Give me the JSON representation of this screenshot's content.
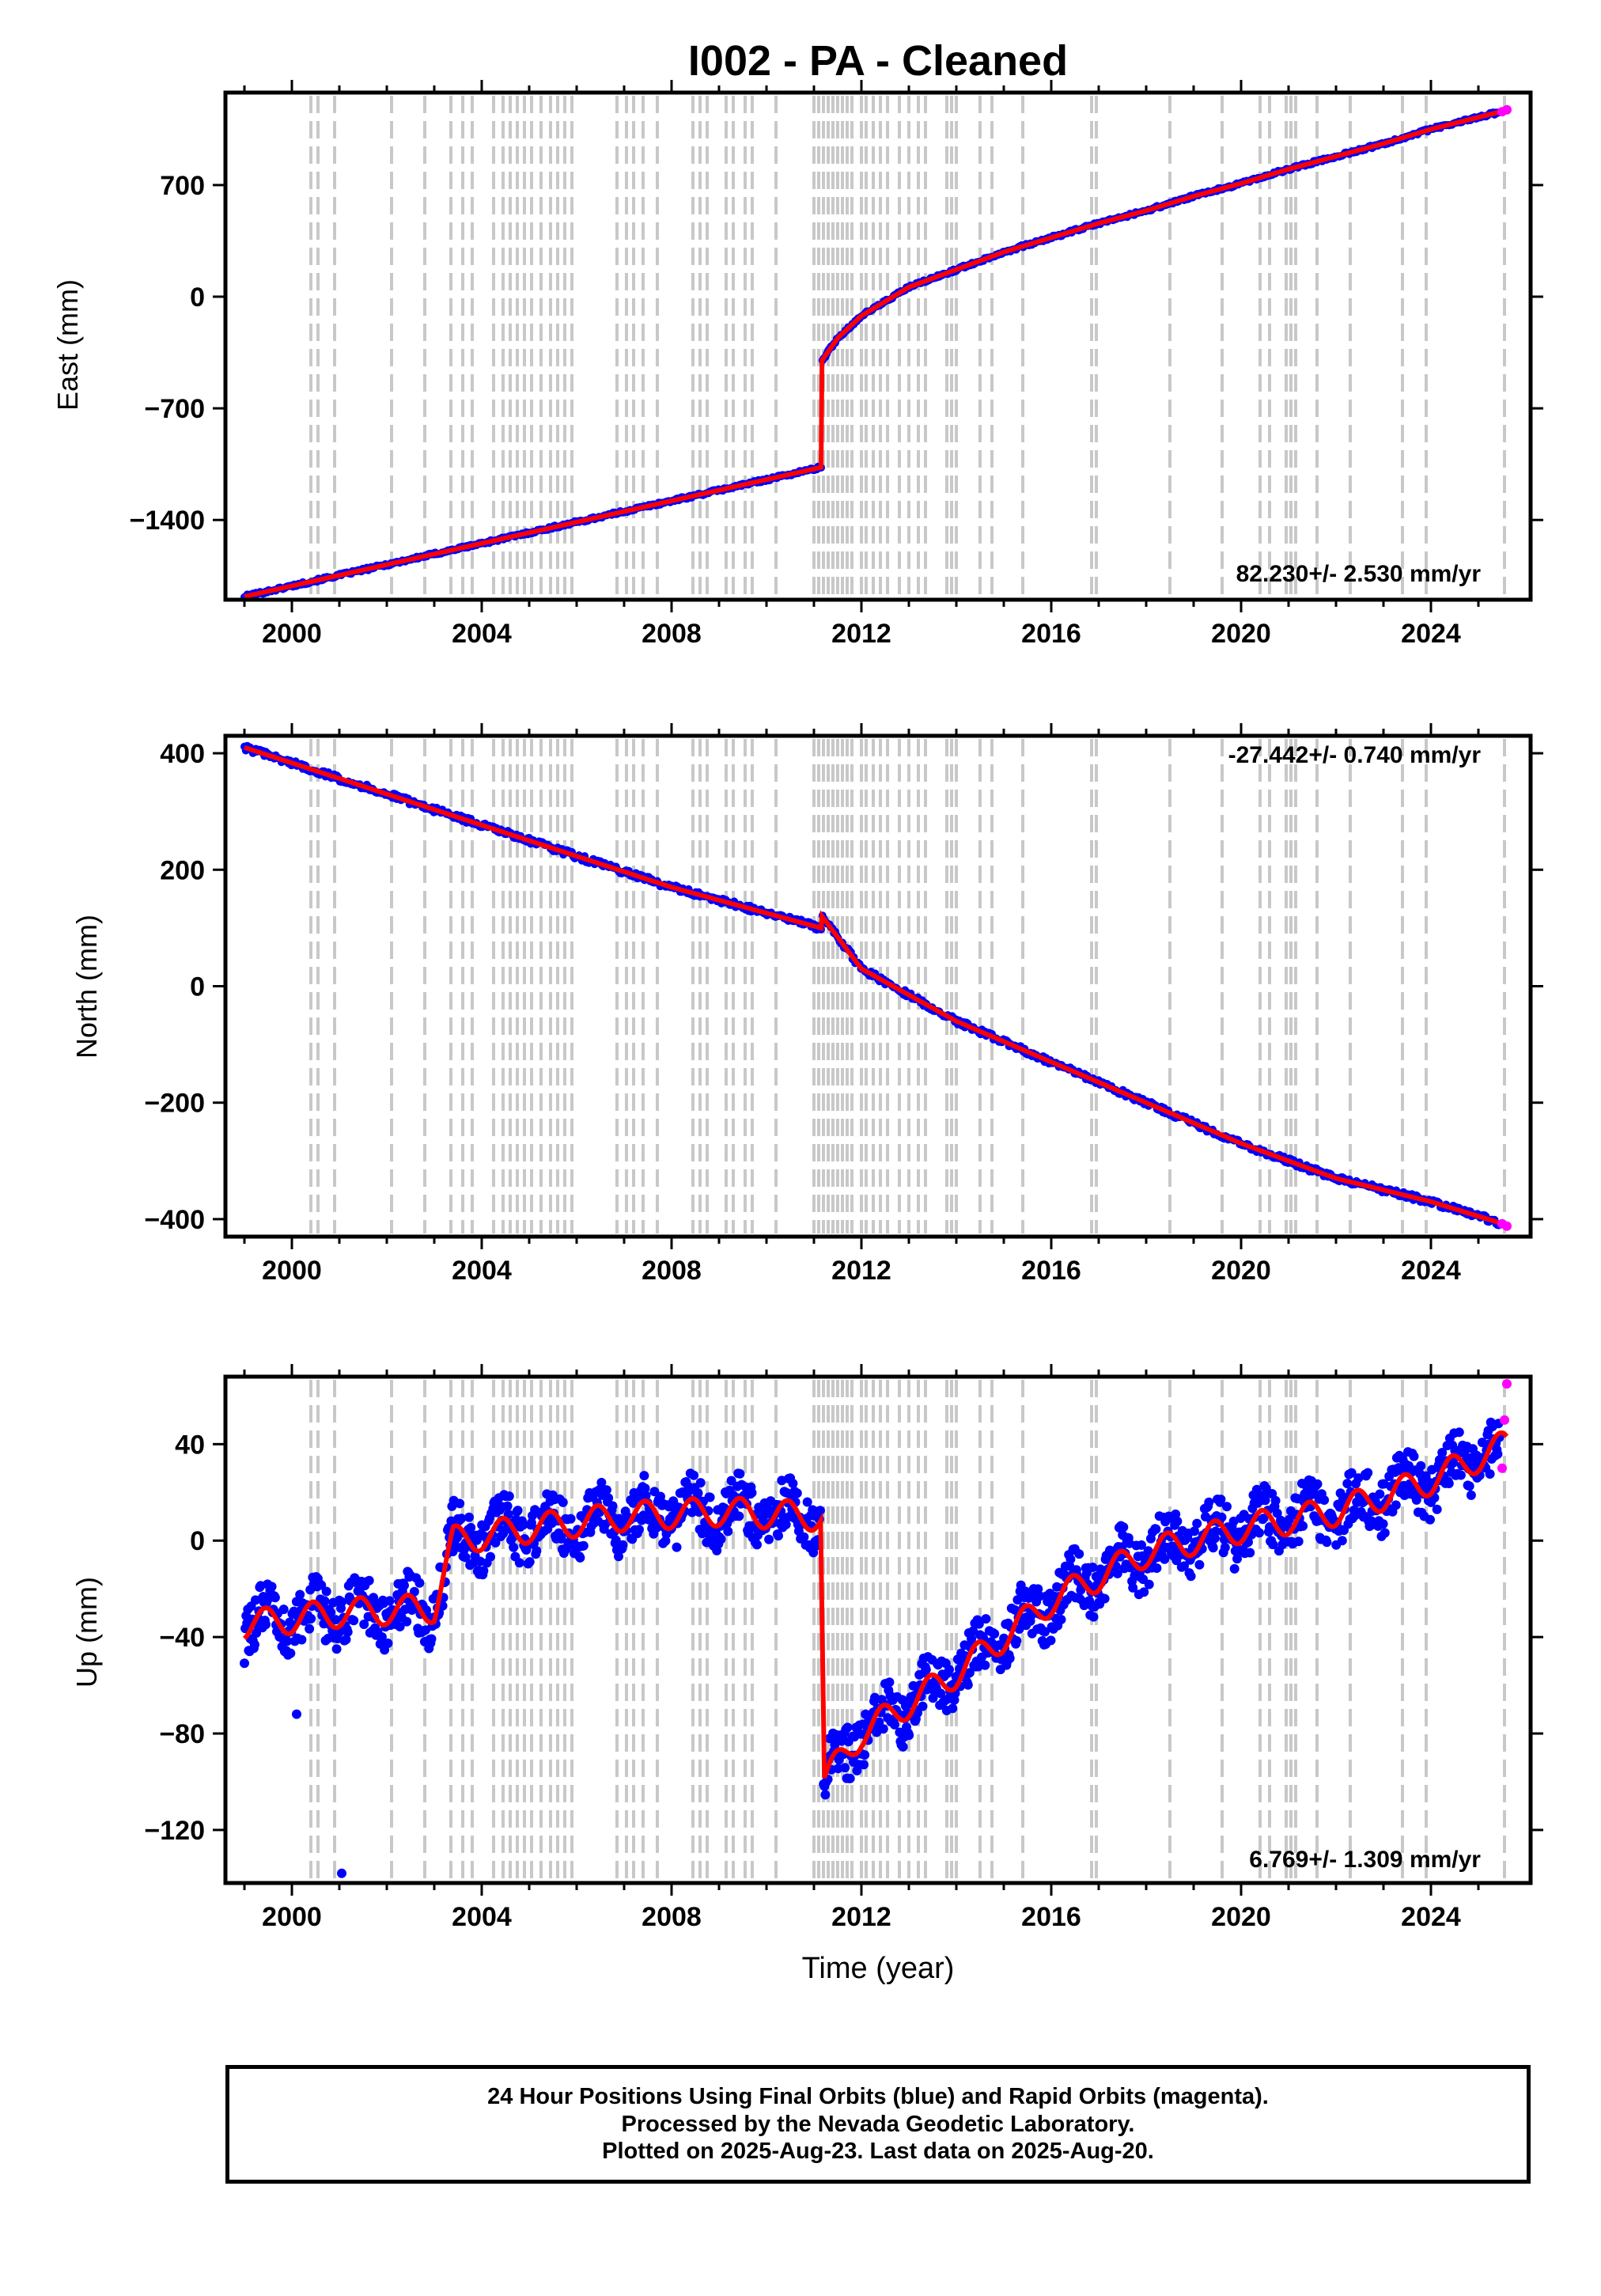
{
  "title": "I002  - PA - Cleaned",
  "footer": {
    "line1": "24 Hour Positions Using Final Orbits (blue) and Rapid Orbits (magenta).",
    "line2": "Processed by the Nevada Geodetic Laboratory.",
    "line3": "Plotted on 2025-Aug-23. Last data on 2025-Aug-20."
  },
  "colors": {
    "final_orbits": "#0000ff",
    "rapid_orbits": "#ff00ff",
    "model": "#ff0000",
    "event_lines": "#c8c8c8"
  },
  "chart_data": [
    {
      "type": "scatter",
      "panel": "east",
      "ylabel": "East (mm)",
      "xlabel": "",
      "xlim": [
        1998.6,
        2026.1
      ],
      "ylim": [
        -1900,
        1280
      ],
      "xticks": [
        2000,
        2004,
        2008,
        2012,
        2016,
        2020,
        2024
      ],
      "yticks": [
        -1400,
        -700,
        0,
        700
      ],
      "ytick_labels": [
        "−1400",
        "−700",
        "0",
        "700"
      ],
      "rate_label": "82.230+/- 2.530 mm/yr",
      "rate_position": "bottom-right",
      "series": [
        {
          "name": "Final Orbits",
          "color": "#0000ff",
          "x": [
            1999.0,
            2002.0,
            2005.0,
            2008.0,
            2011.15
          ],
          "y": [
            -1880,
            -1680,
            -1500,
            -1320,
            -1070
          ]
        },
        {
          "name": "Model",
          "color": "#ff0000",
          "x": [
            1999.0,
            2011.15,
            2011.17,
            2011.5,
            2012.0,
            2013.0,
            2014.0,
            2015.0,
            2016.0,
            2017.0,
            2018.0,
            2019.0,
            2020.0,
            2021.0,
            2022.0,
            2023.0,
            2024.0,
            2025.6
          ],
          "y": [
            -1880,
            -1070,
            -400,
            -260,
            -120,
            60,
            170,
            280,
            370,
            460,
            540,
            630,
            710,
            800,
            880,
            960,
            1050,
            1170
          ]
        },
        {
          "name": "Rapid Orbits",
          "color": "#ff00ff",
          "x": [
            2025.5,
            2025.6
          ],
          "y": [
            1160,
            1172
          ]
        }
      ]
    },
    {
      "type": "scatter",
      "panel": "north",
      "ylabel": "North (mm)",
      "xlabel": "",
      "xlim": [
        1998.6,
        2026.1
      ],
      "ylim": [
        -430,
        430
      ],
      "xticks": [
        2000,
        2004,
        2008,
        2012,
        2016,
        2020,
        2024
      ],
      "yticks": [
        -400,
        -200,
        0,
        200,
        400
      ],
      "ytick_labels": [
        "−400",
        "−200",
        "0",
        "200",
        "400"
      ],
      "rate_label": "-27.442+/- 0.740 mm/yr",
      "rate_position": "top-right",
      "series": [
        {
          "name": "Final Orbits",
          "color": "#0000ff",
          "x": [
            1999.0,
            2002.0,
            2005.0,
            2008.0,
            2011.15
          ],
          "y": [
            410,
            330,
            250,
            170,
            100
          ]
        },
        {
          "name": "Model",
          "color": "#ff0000",
          "x": [
            1999.0,
            2002.0,
            2005.0,
            2008.0,
            2011.15,
            2011.17,
            2012.0,
            2014.0,
            2016.0,
            2018.0,
            2020.0,
            2022.0,
            2024.0,
            2025.6
          ],
          "y": [
            410,
            330,
            250,
            170,
            100,
            120,
            30,
            -60,
            -130,
            -200,
            -270,
            -330,
            -370,
            -410
          ]
        },
        {
          "name": "Rapid Orbits",
          "color": "#ff00ff",
          "x": [
            2025.5,
            2025.6
          ],
          "y": [
            -408,
            -412
          ]
        }
      ]
    },
    {
      "type": "scatter",
      "panel": "up",
      "ylabel": "Up (mm)",
      "xlabel": "Time (year)",
      "xlim": [
        1998.6,
        2026.1
      ],
      "ylim": [
        -142,
        68
      ],
      "xticks": [
        2000,
        2004,
        2008,
        2012,
        2016,
        2020,
        2024
      ],
      "yticks": [
        -120,
        -80,
        -40,
        0,
        40
      ],
      "ytick_labels": [
        "−120",
        "−80",
        "−40",
        "0",
        "40"
      ],
      "rate_label": "6.769+/- 1.309 mm/yr",
      "rate_position": "bottom-right",
      "series": [
        {
          "name": "Final Orbits",
          "color": "#0000ff",
          "x": [
            1999.0,
            2001.0,
            2003.0,
            2003.4,
            2005.0,
            2007.0,
            2009.0,
            2011.15,
            2011.2,
            2012.0,
            2014.0,
            2016.0,
            2018.0,
            2020.0,
            2022.0,
            2024.0,
            2025.4
          ],
          "y": [
            -35,
            -30,
            -28,
            0,
            5,
            10,
            12,
            10,
            -100,
            -80,
            -55,
            -25,
            -5,
            5,
            12,
            25,
            35
          ]
        },
        {
          "name": "Model",
          "color": "#ff0000",
          "x": [
            1999.0,
            2001.0,
            2003.0,
            2003.4,
            2005.0,
            2007.0,
            2009.0,
            2011.15,
            2011.2,
            2012.0,
            2014.0,
            2016.0,
            2018.0,
            2020.0,
            2022.0,
            2024.0,
            2025.6
          ],
          "y": [
            -35,
            -30,
            -28,
            0,
            5,
            10,
            12,
            10,
            -100,
            -80,
            -55,
            -25,
            -5,
            5,
            12,
            25,
            40
          ]
        },
        {
          "name": "Rapid Orbits",
          "color": "#ff00ff",
          "x": [
            2025.5,
            2025.55,
            2025.6
          ],
          "y": [
            30,
            50,
            65
          ]
        }
      ],
      "outliers": {
        "x": [
          2000.1,
          2001.05
        ],
        "y": [
          -72,
          -138
        ]
      }
    }
  ],
  "event_lines_x": [
    2000.4,
    2000.55,
    2000.9,
    2002.1,
    2002.8,
    2003.35,
    2003.6,
    2003.8,
    2004.25,
    2004.45,
    2004.6,
    2004.75,
    2004.9,
    2005.05,
    2005.25,
    2005.45,
    2005.6,
    2005.75,
    2005.9,
    2006.85,
    2007.05,
    2007.2,
    2007.4,
    2007.7,
    2008.45,
    2008.6,
    2008.75,
    2009.15,
    2009.3,
    2009.55,
    2009.7,
    2010.2,
    2011.0,
    2011.1,
    2011.2,
    2011.3,
    2011.4,
    2011.5,
    2011.6,
    2011.7,
    2011.8,
    2012.0,
    2012.1,
    2012.25,
    2012.4,
    2012.55,
    2012.8,
    2013.0,
    2013.2,
    2013.35,
    2013.8,
    2013.9,
    2014.0,
    2014.5,
    2014.75,
    2015.4,
    2016.85,
    2016.95,
    2018.5,
    2019.6,
    2020.4,
    2020.6,
    2020.95,
    2021.05,
    2021.15,
    2021.6,
    2022.3,
    2023.4,
    2023.9,
    2025.55
  ]
}
